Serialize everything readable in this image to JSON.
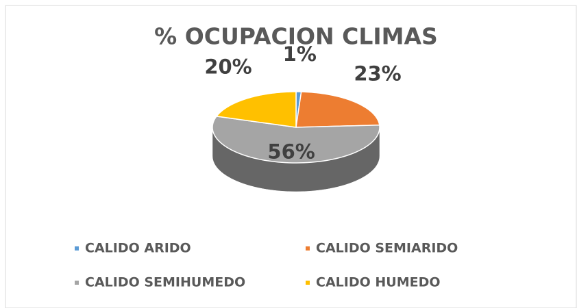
{
  "chart_data": {
    "type": "pie3d",
    "title": "% OCUPACION CLIMAS",
    "categories": [
      "CALIDO ARIDO",
      "CALIDO SEMIARIDO",
      "CALIDO SEMIHUMEDO",
      "CALIDO HUMEDO"
    ],
    "values": [
      1,
      23,
      56,
      20
    ],
    "value_labels": [
      "1%",
      "23%",
      "56%",
      "20%"
    ],
    "colors": [
      "#5b9bd5",
      "#ed7d31",
      "#a5a5a5",
      "#ffc000"
    ],
    "legend": "bottom"
  }
}
